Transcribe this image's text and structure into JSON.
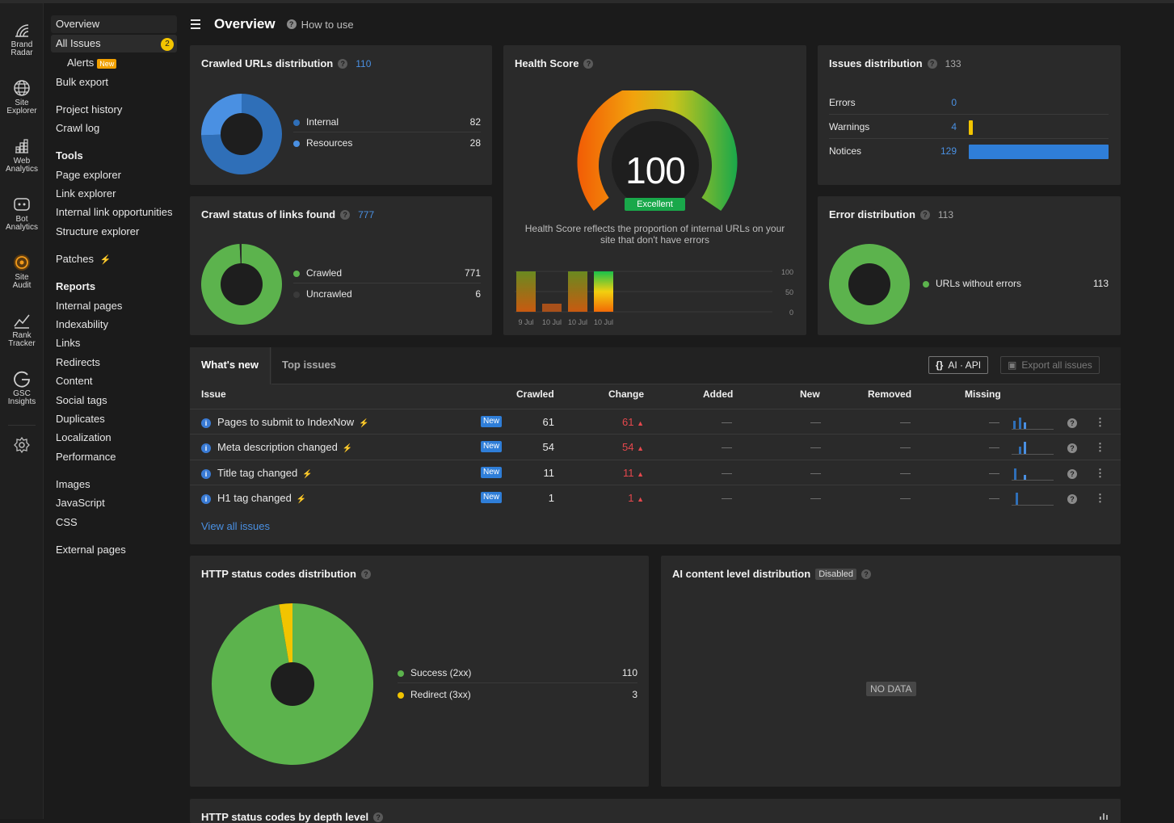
{
  "rail": {
    "items": [
      {
        "label1": "Brand",
        "label2": "Radar",
        "icon": "brand-radar-icon"
      },
      {
        "label1": "Site",
        "label2": "Explorer",
        "icon": "globe-icon"
      },
      {
        "label1": "Web",
        "label2": "Analytics",
        "icon": "web-analytics-icon"
      },
      {
        "label1": "Bot",
        "label2": "Analytics",
        "icon": "bot-icon"
      },
      {
        "label1": "Site",
        "label2": "Audit",
        "icon": "site-audit-icon"
      },
      {
        "label1": "Rank",
        "label2": "Tracker",
        "icon": "rank-tracker-icon"
      },
      {
        "label1": "GSC",
        "label2": "Insights",
        "icon": "google-icon"
      }
    ],
    "settings_icon": "gear-icon"
  },
  "nav": {
    "overview": "Overview",
    "all_issues": "All Issues",
    "all_issues_badge": "2",
    "alerts": "Alerts",
    "alerts_tag": "New",
    "bulk_export": "Bulk export",
    "project_history": "Project history",
    "crawl_log": "Crawl log",
    "tools_head": "Tools",
    "page_explorer": "Page explorer",
    "link_explorer": "Link explorer",
    "internal_link_opportunities": "Internal link opportunities",
    "structure_explorer": "Structure explorer",
    "patches": "Patches",
    "reports_head": "Reports",
    "internal_pages": "Internal pages",
    "indexability": "Indexability",
    "links": "Links",
    "redirects": "Redirects",
    "content": "Content",
    "social_tags": "Social tags",
    "duplicates": "Duplicates",
    "localization": "Localization",
    "performance": "Performance",
    "images": "Images",
    "javascript": "JavaScript",
    "css": "CSS",
    "external_pages": "External pages"
  },
  "header": {
    "title": "Overview",
    "how_to_use": "How to use"
  },
  "crawled_urls": {
    "title": "Crawled URLs distribution",
    "count": "110",
    "legend": [
      {
        "label": "Internal",
        "value": "82",
        "color": "#2f6fb8"
      },
      {
        "label": "Resources",
        "value": "28",
        "color": "#4a90e2"
      }
    ]
  },
  "crawl_status": {
    "title": "Crawl status of links found",
    "count": "777",
    "legend": [
      {
        "label": "Crawled",
        "value": "771",
        "color": "#5cb34d"
      },
      {
        "label": "Uncrawled",
        "value": "6",
        "color": "#3a3a3a"
      }
    ]
  },
  "health": {
    "title": "Health Score",
    "score": "100",
    "rating": "Excellent",
    "description1": "Health Score reflects the proportion of internal URLs on your",
    "description2": "site that don't have errors",
    "chart_ticks": [
      "100",
      "50",
      "0"
    ],
    "chart_dates": [
      "9 Jul",
      "10 Jul",
      "10 Jul",
      "10 Jul"
    ]
  },
  "issues_dist": {
    "title": "Issues distribution",
    "count": "133",
    "rows": [
      {
        "label": "Errors",
        "value": "0",
        "color": "#e5484d"
      },
      {
        "label": "Warnings",
        "value": "4",
        "color": "#f2c400"
      },
      {
        "label": "Notices",
        "value": "129",
        "color": "#2f7ed8"
      }
    ]
  },
  "error_dist": {
    "title": "Error distribution",
    "count": "113",
    "legend": [
      {
        "label": "URLs without errors",
        "value": "113",
        "color": "#5cb34d"
      }
    ]
  },
  "table": {
    "tab_whats_new": "What's new",
    "tab_top_issues": "Top issues",
    "ai_api": "AI · API",
    "export_all": "Export all issues",
    "columns": [
      "Issue",
      "Crawled",
      "Change",
      "Added",
      "New",
      "Removed",
      "Missing"
    ],
    "rows": [
      {
        "issue": "Pages to submit to IndexNow",
        "tag": "New",
        "crawled": "61",
        "change": "61"
      },
      {
        "issue": "Meta description changed",
        "tag": "New",
        "crawled": "54",
        "change": "54"
      },
      {
        "issue": "Title tag changed",
        "tag": "New",
        "crawled": "11",
        "change": "11"
      },
      {
        "issue": "H1 tag changed",
        "tag": "New",
        "crawled": "1",
        "change": "1"
      }
    ],
    "dash": "—",
    "view_all": "View all issues"
  },
  "http_status": {
    "title": "HTTP status codes distribution",
    "legend": [
      {
        "label": "Success (2xx)",
        "value": "110",
        "color": "#5cb34d"
      },
      {
        "label": "Redirect (3xx)",
        "value": "3",
        "color": "#f2c400"
      }
    ]
  },
  "ai_content": {
    "title": "AI content level distribution",
    "tag": "Disabled",
    "no_data": "NO DATA"
  },
  "depth": {
    "title": "HTTP status codes by depth level"
  },
  "chart_data": [
    {
      "type": "pie",
      "title": "Crawled URLs distribution",
      "categories": [
        "Internal",
        "Resources"
      ],
      "values": [
        82,
        28
      ]
    },
    {
      "type": "pie",
      "title": "Crawl status of links found",
      "categories": [
        "Crawled",
        "Uncrawled"
      ],
      "values": [
        771,
        6
      ]
    },
    {
      "type": "bar",
      "title": "Health Score",
      "categories": [
        "9 Jul",
        "10 Jul",
        "10 Jul",
        "10 Jul"
      ],
      "values": [
        100,
        20,
        100,
        100
      ],
      "ylim": [
        0,
        100
      ]
    },
    {
      "type": "pie",
      "title": "Error distribution",
      "categories": [
        "URLs without errors"
      ],
      "values": [
        113
      ]
    },
    {
      "type": "pie",
      "title": "HTTP status codes distribution",
      "categories": [
        "Success (2xx)",
        "Redirect (3xx)"
      ],
      "values": [
        110,
        3
      ]
    }
  ]
}
